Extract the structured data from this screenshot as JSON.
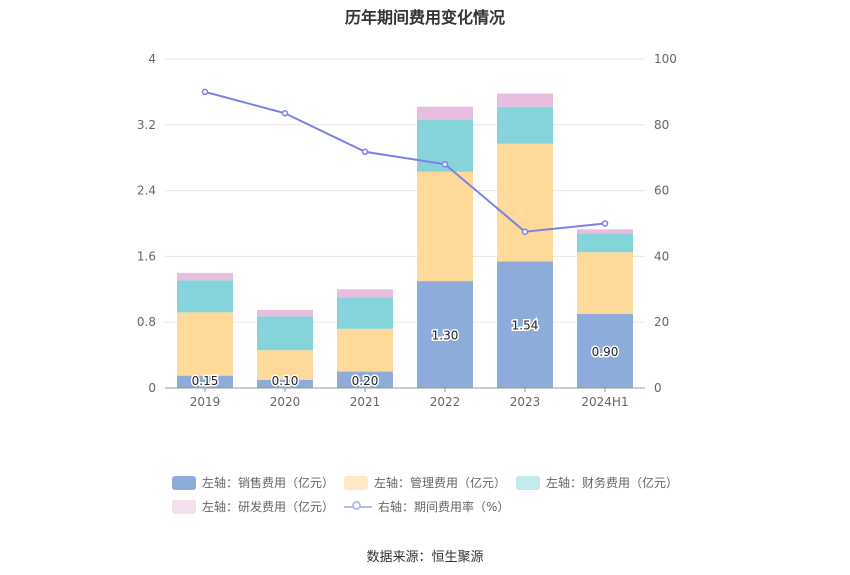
{
  "chart_data": {
    "type": "bar",
    "title": "历年期间费用变化情况",
    "categories": [
      "2019",
      "2020",
      "2021",
      "2022",
      "2023",
      "2024H1"
    ],
    "series": [
      {
        "name": "左轴：销售费用（亿元）",
        "axis": "left",
        "kind": "bar",
        "color": "#8eacd9",
        "values": [
          0.15,
          0.1,
          0.2,
          1.3,
          1.54,
          0.9
        ],
        "labels": [
          "0.15",
          "0.10",
          "0.20",
          "1.30",
          "1.54",
          "0.90"
        ]
      },
      {
        "name": "左轴：管理费用（亿元）",
        "axis": "left",
        "kind": "bar",
        "color": "#ffd99a",
        "values": [
          0.77,
          0.36,
          0.52,
          1.33,
          1.43,
          0.75
        ]
      },
      {
        "name": "左轴：财务费用（亿元）",
        "axis": "left",
        "kind": "bar",
        "color": "#85d4d9",
        "values": [
          0.39,
          0.41,
          0.38,
          0.63,
          0.45,
          0.23
        ]
      },
      {
        "name": "左轴：研发费用（亿元）",
        "axis": "left",
        "kind": "bar",
        "color": "#e8bde0",
        "values": [
          0.09,
          0.08,
          0.1,
          0.16,
          0.16,
          0.05
        ]
      },
      {
        "name": "右轴：期间费用率（%）",
        "axis": "right",
        "kind": "line",
        "color": "#7b80e8",
        "values": [
          90,
          83.5,
          71.8,
          68,
          47.5,
          50
        ]
      }
    ],
    "y_left": {
      "min": 0,
      "max": 4,
      "ticks": [
        "0",
        "0.8",
        "1.6",
        "2.4",
        "3.2",
        "4"
      ]
    },
    "y_right": {
      "min": 0,
      "max": 100,
      "ticks": [
        "0",
        "20",
        "40",
        "60",
        "80",
        "100"
      ]
    },
    "grid": true,
    "legend_position": "bottom"
  },
  "legend_colors": {
    "sales": "#8eacd9",
    "admin": "#ffe9c6",
    "finance": "#c4eaec",
    "rd": "#f3dfee",
    "rate": "#7b80e8"
  },
  "source": "数据来源：恒生聚源"
}
